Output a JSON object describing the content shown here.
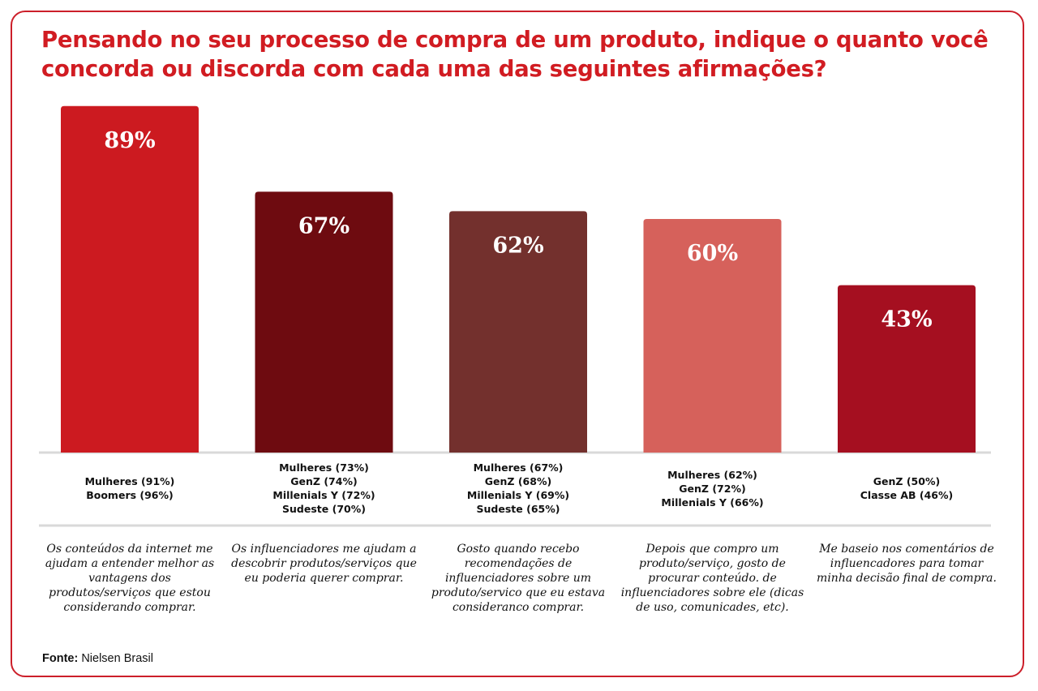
{
  "title": "Pensando no seu processo de compra de um produto, indique o quanto você concorda ou discorda com cada uma das seguintes afirmações?",
  "chart_data": {
    "type": "bar",
    "categories": [
      "Os conteúdos da internet me ajudam a entender melhor as vantagens dos produtos/serviços que estou considerando comprar.",
      "Os influenciadores me ajudam a descobrir produtos/serviços que eu poderia querer comprar.",
      "Gosto quando recebo recomendações de influenciadores sobre um produto/servico que eu estava consideranco comprar.",
      "Depois que compro um produto/serviço, gosto de procurar conteúdo. de influenciadores sobre ele (dicas de uso, comunicades, etc).",
      "Me baseio nos comentários de influencadores para tomar minha decisão final de compra."
    ],
    "values": [
      89,
      67,
      62,
      60,
      43
    ],
    "value_labels": [
      "89%",
      "67%",
      "62%",
      "60%",
      "43%"
    ],
    "colors": [
      "#cc1a20",
      "#6e0b10",
      "#73302d",
      "#d6615b",
      "#a50f20"
    ],
    "ylim": [
      0,
      100
    ],
    "grid": false,
    "segments": [
      [
        "Mulheres (91%)",
        "Boomers (96%)"
      ],
      [
        "Mulheres (73%)",
        "GenZ (74%)",
        "Millenials Y (72%)",
        "Sudeste (70%)"
      ],
      [
        "Mulheres (67%)",
        "GenZ (68%)",
        "Millenials Y (69%)",
        "Sudeste (65%)"
      ],
      [
        "Mulheres (62%)",
        "GenZ (72%)",
        "Millenials Y (66%)"
      ],
      [
        "GenZ (50%)",
        "Classe AB (46%)"
      ]
    ]
  },
  "source": {
    "label": "Fonte:",
    "text": "Nielsen Brasil"
  },
  "theme": {
    "accent": "#d11c22",
    "frame": "#cc1f2a",
    "divider": "#d9d9d9"
  }
}
